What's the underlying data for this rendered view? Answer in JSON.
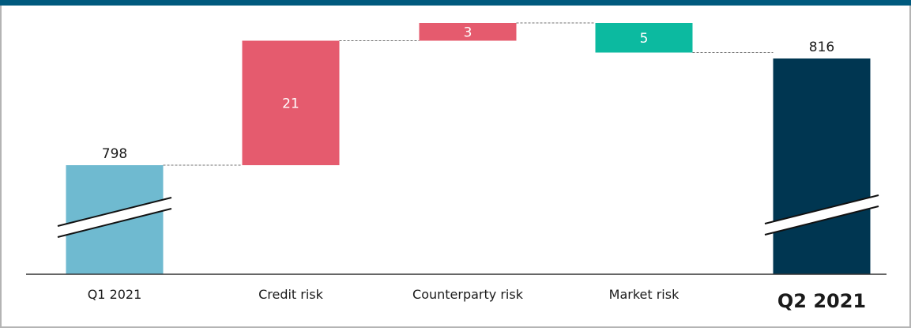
{
  "colors": {
    "top_band": "#005a7e",
    "frame": "#b4b4b4",
    "start_bar": "#6fbad0",
    "increase_bar": "#e55b6e",
    "decrease_bar": "#0cbaa0",
    "end_bar": "#003651",
    "connector": "#707070",
    "baseline": "#333333",
    "text_dark": "#1a1a1a",
    "text_light": "#ffffff"
  },
  "chart_data": {
    "type": "bar",
    "subtype": "waterfall",
    "title": "",
    "xlabel": "",
    "ylabel": "",
    "axis_break": true,
    "categories": [
      "Q1 2021",
      "Credit risk",
      "Counterparty risk",
      "Market risk",
      "Q2 2021"
    ],
    "bars": [
      {
        "category": "Q1 2021",
        "kind": "total",
        "value": 798,
        "label": "798"
      },
      {
        "category": "Credit risk",
        "kind": "increase",
        "value": 21,
        "label": "21"
      },
      {
        "category": "Counterparty risk",
        "kind": "increase",
        "value": 3,
        "label": "3"
      },
      {
        "category": "Market risk",
        "kind": "decrease",
        "value": -5,
        "label": "5"
      },
      {
        "category": "Q2 2021",
        "kind": "total",
        "value": 816,
        "label": "816"
      }
    ]
  }
}
